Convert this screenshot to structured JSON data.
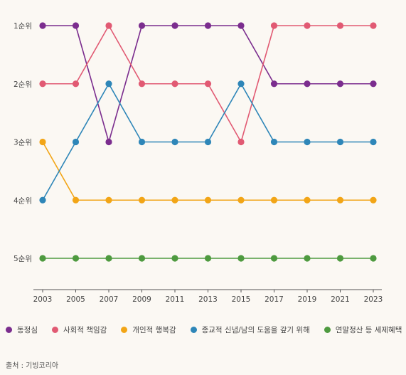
{
  "chart_data": {
    "type": "line",
    "title": "",
    "xlabel": "",
    "ylabel": "",
    "x": [
      "2003",
      "2005",
      "2007",
      "2009",
      "2011",
      "2013",
      "2015",
      "2017",
      "2019",
      "2021",
      "2023"
    ],
    "y_ticks": [
      "1순위",
      "2순위",
      "3순위",
      "4순위",
      "5순위"
    ],
    "ylim": [
      1,
      5
    ],
    "y_inverted": true,
    "grid": false,
    "legend_position": "bottom",
    "series": [
      {
        "name": "동정심",
        "color": "#7b2d8e",
        "values": [
          1,
          1,
          3,
          1,
          1,
          1,
          1,
          2,
          2,
          2,
          2
        ]
      },
      {
        "name": "사회적 책임감",
        "color": "#e15a73",
        "values": [
          2,
          2,
          1,
          2,
          2,
          2,
          3,
          1,
          1,
          1,
          1
        ]
      },
      {
        "name": "개인적 행복감",
        "color": "#f2a516",
        "values": [
          3,
          4,
          4,
          4,
          4,
          4,
          4,
          4,
          4,
          4,
          4
        ]
      },
      {
        "name": "종교적 신념/남의 도움을 갚기 위해",
        "color": "#2e86b8",
        "values": [
          4,
          3,
          2,
          3,
          3,
          3,
          2,
          3,
          3,
          3,
          3
        ]
      },
      {
        "name": "연말정산 등 세제혜택",
        "color": "#4e9a3f",
        "values": [
          5,
          5,
          5,
          5,
          5,
          5,
          5,
          5,
          5,
          5,
          5
        ]
      }
    ]
  },
  "source": "출처 : 기빙코리아"
}
